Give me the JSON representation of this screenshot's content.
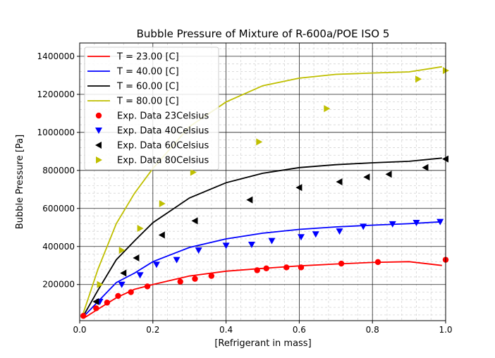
{
  "chart_data": {
    "type": "line",
    "title": "Bubble Pressure of Mixture of R-600a/POE ISO 5",
    "xlabel": "[Refrigerant in mass]",
    "ylabel": "Bubble Pressure [Pa]",
    "xlim": [
      0.0,
      1.0
    ],
    "ylim": [
      10000,
      1470000
    ],
    "x_ticks": [
      0.0,
      0.2,
      0.4,
      0.6,
      0.8,
      1.0
    ],
    "x_tick_labels": [
      "0.0",
      "0.2",
      "0.4",
      "0.6",
      "0.8",
      "1.0"
    ],
    "y_ticks": [
      200000,
      400000,
      600000,
      800000,
      1000000,
      1200000,
      1400000
    ],
    "y_tick_labels": [
      "200000",
      "400000",
      "600000",
      "800000",
      "1000000",
      "1200000",
      "1400000"
    ],
    "grid": "major and minor",
    "legend_position": "upper-left",
    "series": [
      {
        "name": "T = 23.00 [C]",
        "kind": "line",
        "color": "#ff0000",
        "x": [
          0.01,
          0.05,
          0.1,
          0.15,
          0.2,
          0.3,
          0.4,
          0.5,
          0.6,
          0.7,
          0.8,
          0.9,
          0.99
        ],
        "y": [
          22000,
          70000,
          130000,
          175000,
          200000,
          245000,
          270000,
          285000,
          298000,
          308000,
          316000,
          320000,
          300000
        ]
      },
      {
        "name": "T = 40.00 [C]",
        "kind": "line",
        "color": "#0000ff",
        "x": [
          0.01,
          0.05,
          0.1,
          0.15,
          0.2,
          0.3,
          0.4,
          0.5,
          0.6,
          0.7,
          0.8,
          0.9,
          0.99
        ],
        "y": [
          30000,
          110000,
          210000,
          260000,
          320000,
          395000,
          440000,
          470000,
          490000,
          503000,
          512000,
          520000,
          530000
        ]
      },
      {
        "name": "T = 60.00 [C]",
        "kind": "line",
        "color": "#000000",
        "x": [
          0.01,
          0.05,
          0.1,
          0.15,
          0.2,
          0.3,
          0.4,
          0.5,
          0.6,
          0.7,
          0.8,
          0.9,
          0.99
        ],
        "y": [
          35000,
          170000,
          330000,
          430000,
          525000,
          655000,
          735000,
          785000,
          815000,
          830000,
          840000,
          848000,
          865000
        ]
      },
      {
        "name": "T = 80.00 [C]",
        "kind": "line",
        "color": "#bfbf00",
        "x": [
          0.01,
          0.05,
          0.1,
          0.15,
          0.2,
          0.3,
          0.4,
          0.5,
          0.6,
          0.7,
          0.8,
          0.9,
          0.99
        ],
        "y": [
          50000,
          280000,
          520000,
          680000,
          810000,
          1030000,
          1160000,
          1245000,
          1285000,
          1305000,
          1312000,
          1318000,
          1345000
        ]
      },
      {
        "name": "Exp. Data 23Celsius",
        "kind": "scatter",
        "marker": "circle",
        "color": "#ff0000",
        "x": [
          0.01,
          0.045,
          0.075,
          0.105,
          0.14,
          0.185,
          0.275,
          0.315,
          0.36,
          0.485,
          0.51,
          0.565,
          0.605,
          0.715,
          0.815,
          1.0
        ],
        "y": [
          35000,
          75000,
          105000,
          140000,
          160000,
          190000,
          215000,
          230000,
          245000,
          275000,
          285000,
          290000,
          290000,
          310000,
          318000,
          330000
        ]
      },
      {
        "name": "Exp. Data 40Celsius",
        "kind": "scatter",
        "marker": "triangle-down",
        "color": "#0000ff",
        "x": [
          0.055,
          0.115,
          0.165,
          0.21,
          0.265,
          0.325,
          0.4,
          0.47,
          0.525,
          0.605,
          0.645,
          0.71,
          0.775,
          0.855,
          0.92,
          0.985
        ],
        "y": [
          110000,
          200000,
          250000,
          305000,
          330000,
          380000,
          405000,
          410000,
          430000,
          450000,
          465000,
          480000,
          505000,
          518000,
          525000,
          530000
        ]
      },
      {
        "name": "Exp. Data 60Celsius",
        "kind": "scatter",
        "marker": "triangle-left",
        "color": "#000000",
        "x": [
          0.045,
          0.12,
          0.155,
          0.225,
          0.315,
          0.465,
          0.6,
          0.71,
          0.785,
          0.845,
          0.945,
          1.0
        ],
        "y": [
          110000,
          260000,
          340000,
          460000,
          535000,
          645000,
          710000,
          740000,
          765000,
          780000,
          815000,
          860000
        ]
      },
      {
        "name": "Exp. Data 80Celsius",
        "kind": "scatter",
        "marker": "triangle-right",
        "color": "#bfbf00",
        "x": [
          0.055,
          0.115,
          0.165,
          0.225,
          0.31,
          0.49,
          0.675,
          0.925,
          1.0
        ],
        "y": [
          200000,
          380000,
          495000,
          625000,
          790000,
          950000,
          1125000,
          1280000,
          1325000
        ]
      }
    ]
  }
}
